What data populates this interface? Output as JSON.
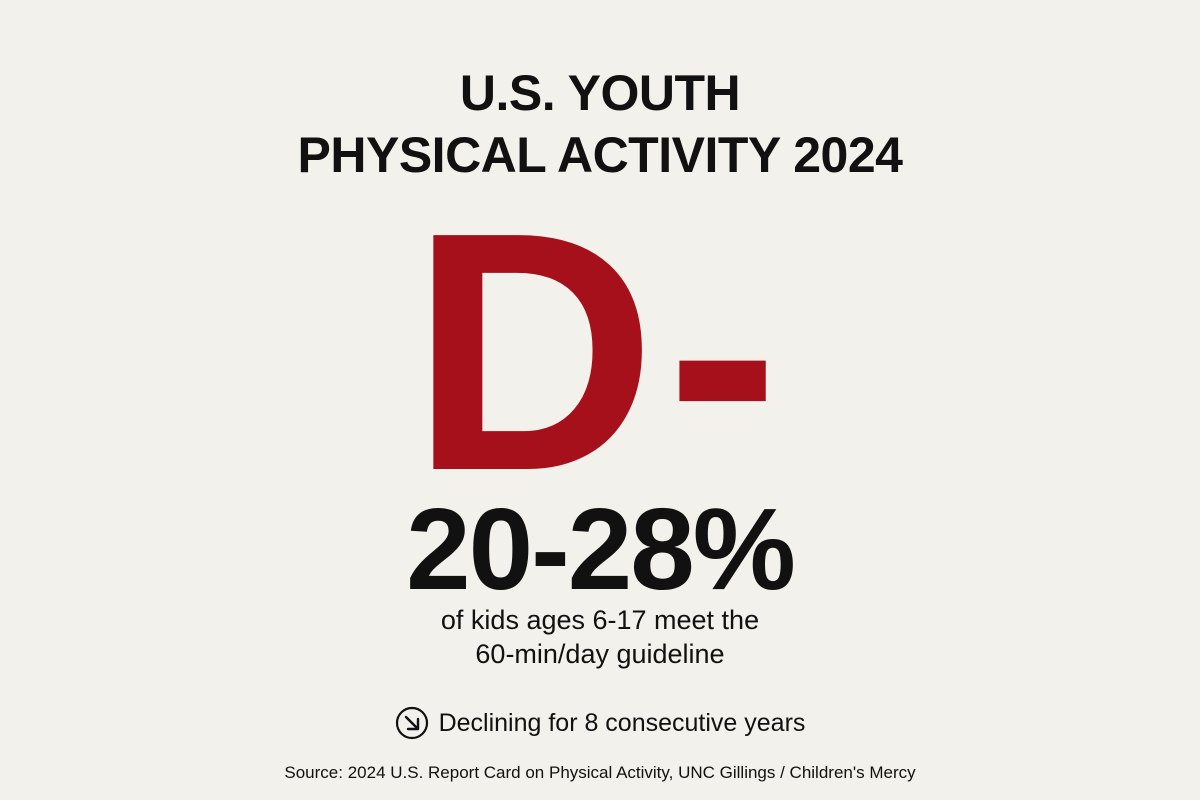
{
  "header": {
    "title_lines": [
      "U.S. YOUTH",
      "PHYSICAL ACTIVITY 2024"
    ]
  },
  "grade": "D-",
  "stat": {
    "value": "20-28%",
    "description_lines": [
      "of kids ages 6-17 meet the",
      "60-min/day guideline"
    ]
  },
  "trend": "Declining for 8 consecutive years",
  "source": "Source: 2024 U.S. Report Card on Physical Activity, UNC Gillings / Children's Mercy"
}
